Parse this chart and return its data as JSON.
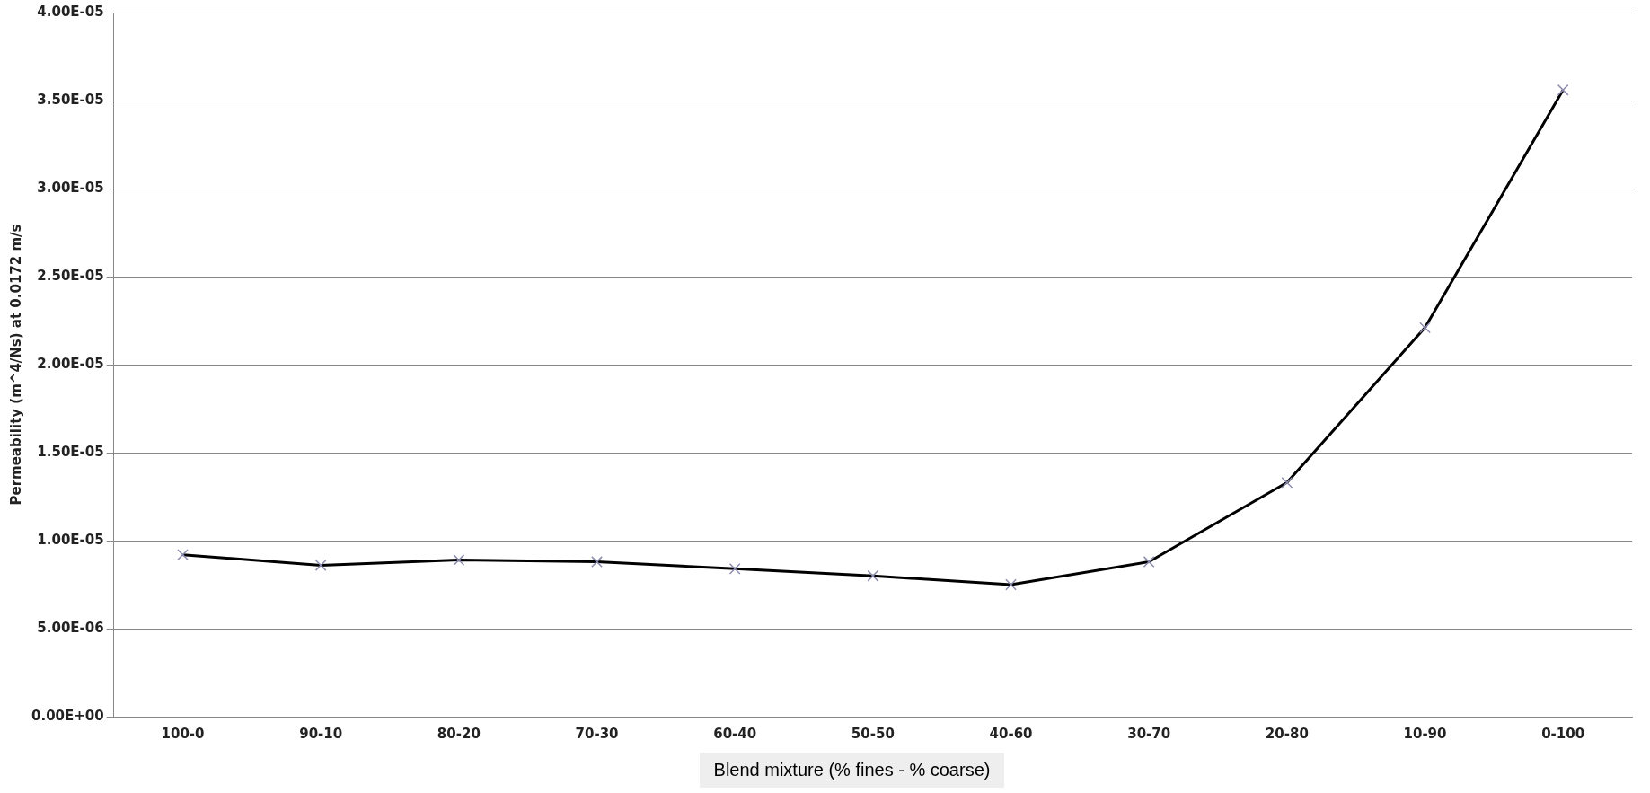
{
  "chart_data": {
    "type": "line",
    "xlabel": "Blend mixture (% fines - % coarse)",
    "ylabel": "Permeability (m^4/Ns) at 0.0172 m/s",
    "categories": [
      "100-0",
      "90-10",
      "80-20",
      "70-30",
      "60-40",
      "50-50",
      "40-60",
      "30-70",
      "20-80",
      "10-90",
      "0-100"
    ],
    "series": [
      {
        "color": "#000000",
        "values": [
          9.2e-06,
          8.6e-06,
          8.9e-06,
          8.8e-06,
          8.4e-06,
          8e-06,
          7.5e-06,
          8.8e-06,
          1.33e-05,
          2.21e-05,
          3.56e-05
        ]
      }
    ],
    "ylim": [
      0,
      4e-05
    ],
    "yticks": [
      {
        "value": 0,
        "label": "0.00E+00"
      },
      {
        "value": 5e-06,
        "label": "5.00E-06"
      },
      {
        "value": 1e-05,
        "label": "1.00E-05"
      },
      {
        "value": 1.5e-05,
        "label": "1.50E-05"
      },
      {
        "value": 2e-05,
        "label": "2.00E-05"
      },
      {
        "value": 2.5e-05,
        "label": "2.50E-05"
      },
      {
        "value": 3e-05,
        "label": "3.00E-05"
      },
      {
        "value": 3.5e-05,
        "label": "3.50E-05"
      },
      {
        "value": 4e-05,
        "label": "4.00E-05"
      }
    ],
    "grid": "y",
    "legend": false,
    "marker": "cross",
    "line_style": "solid"
  }
}
